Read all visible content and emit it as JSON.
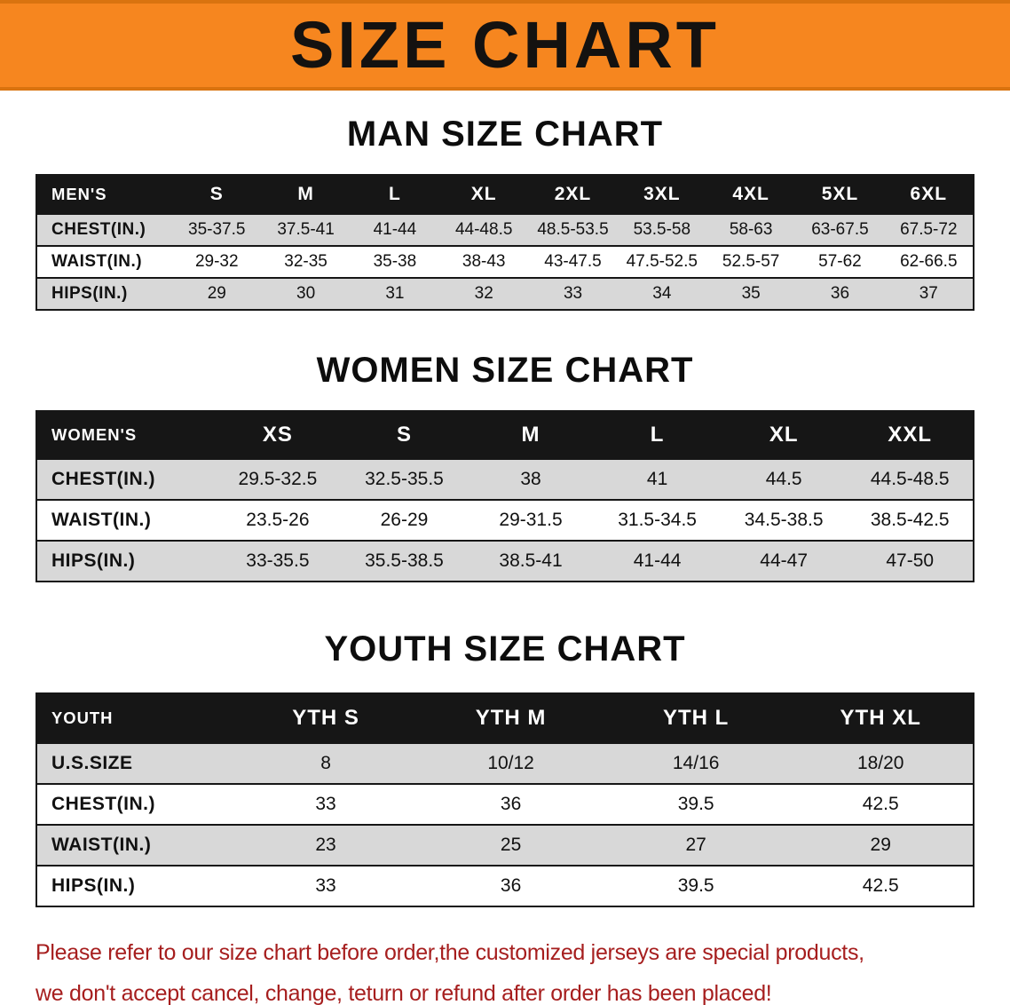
{
  "banner": {
    "title": "SIZE CHART"
  },
  "colors": {
    "banner_bg": "#f6861f",
    "table_header_bg": "#161616",
    "shaded_row": "#d8d8d8",
    "notice_text": "#a61e1e"
  },
  "chart_data": [
    {
      "type": "table",
      "title": "MAN SIZE CHART",
      "header": [
        "MEN'S",
        "S",
        "M",
        "L",
        "XL",
        "2XL",
        "3XL",
        "4XL",
        "5XL",
        "6XL"
      ],
      "rows": [
        [
          "CHEST(IN.)",
          "35-37.5",
          "37.5-41",
          "41-44",
          "44-48.5",
          "48.5-53.5",
          "53.5-58",
          "58-63",
          "63-67.5",
          "67.5-72"
        ],
        [
          "WAIST(IN.)",
          "29-32",
          "32-35",
          "35-38",
          "38-43",
          "43-47.5",
          "47.5-52.5",
          "52.5-57",
          "57-62",
          "62-66.5"
        ],
        [
          "HIPS(IN.)",
          "29",
          "30",
          "31",
          "32",
          "33",
          "34",
          "35",
          "36",
          "37"
        ]
      ]
    },
    {
      "type": "table",
      "title": "WOMEN SIZE CHART",
      "header": [
        "WOMEN'S",
        "XS",
        "S",
        "M",
        "L",
        "XL",
        "XXL"
      ],
      "rows": [
        [
          "CHEST(IN.)",
          "29.5-32.5",
          "32.5-35.5",
          "38",
          "41",
          "44.5",
          "44.5-48.5"
        ],
        [
          "WAIST(IN.)",
          "23.5-26",
          "26-29",
          "29-31.5",
          "31.5-34.5",
          "34.5-38.5",
          "38.5-42.5"
        ],
        [
          "HIPS(IN.)",
          "33-35.5",
          "35.5-38.5",
          "38.5-41",
          "41-44",
          "44-47",
          "47-50"
        ]
      ]
    },
    {
      "type": "table",
      "title": "YOUTH SIZE CHART",
      "header": [
        "YOUTH",
        "YTH S",
        "YTH M",
        "YTH L",
        "YTH XL"
      ],
      "rows": [
        [
          "U.S.SIZE",
          "8",
          "10/12",
          "14/16",
          "18/20"
        ],
        [
          "CHEST(IN.)",
          "33",
          "36",
          "39.5",
          "42.5"
        ],
        [
          "WAIST(IN.)",
          "23",
          "25",
          "27",
          "29"
        ],
        [
          "HIPS(IN.)",
          "33",
          "36",
          "39.5",
          "42.5"
        ]
      ]
    }
  ],
  "footer": {
    "line1": "Please refer to our size chart before order,the customized jerseys are special products,",
    "line2": "we don't accept cancel, change, teturn or refund after order has been placed!"
  }
}
